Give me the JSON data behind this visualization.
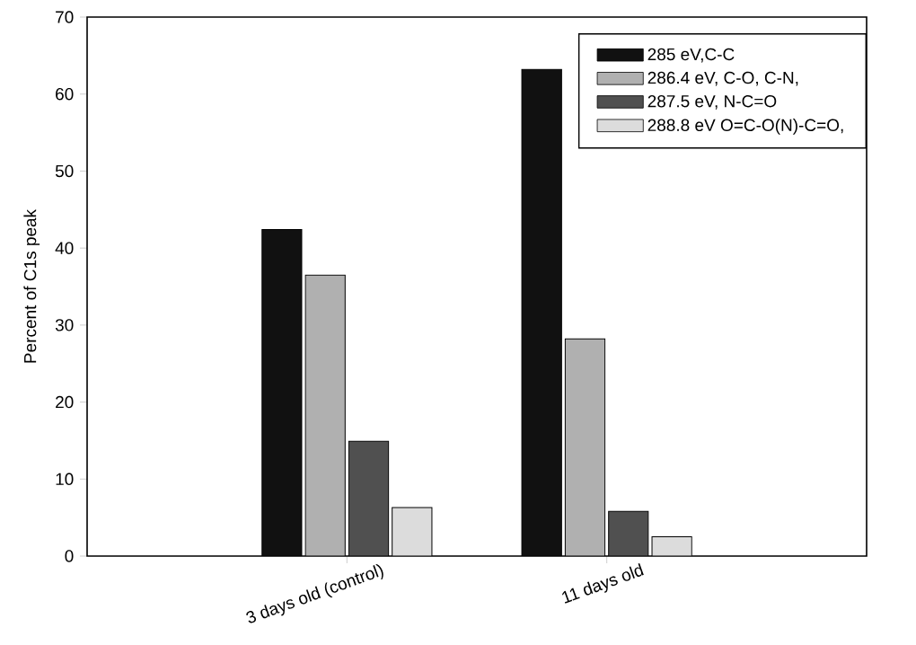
{
  "chart_data": {
    "type": "bar",
    "ylabel": "Percent of C1s peak",
    "categories": [
      "3 days old (control)",
      "11 days old"
    ],
    "series": [
      {
        "name": "285 eV,C-C",
        "color": "#111111",
        "values": [
          42.4,
          63.2
        ]
      },
      {
        "name": "286.4 eV, C-O, C-N,",
        "color": "#b0b0b0",
        "values": [
          36.5,
          28.2
        ]
      },
      {
        "name": "287.5 eV, N-C=O",
        "color": "#505050",
        "values": [
          14.9,
          5.8
        ]
      },
      {
        "name": "288.8 eV O=C-O(N)-C=O,",
        "color": "#dcdcdc",
        "values": [
          6.3,
          2.5
        ]
      }
    ],
    "ylim": [
      0,
      70
    ],
    "yticks": [
      0,
      10,
      20,
      30,
      40,
      50,
      60,
      70
    ],
    "legend": "top right",
    "grid": false
  }
}
